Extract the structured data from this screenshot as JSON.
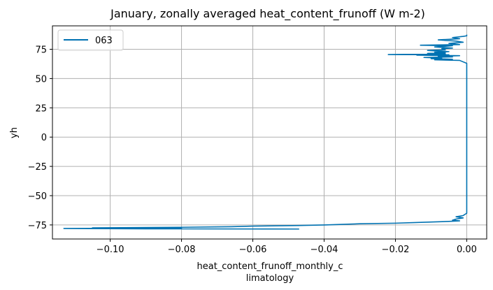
{
  "chart_data": {
    "type": "line",
    "title": "January, zonally averaged heat_content_frunoff (W m-2)",
    "xlabel_lines": [
      "heat_content_frunoff_monthly_c",
      "limatology"
    ],
    "ylabel": "yh",
    "xlim": [
      -0.1162,
      0.0056
    ],
    "ylim": [
      -87,
      95
    ],
    "xticks": [
      -0.1,
      -0.08,
      -0.06,
      -0.04,
      -0.02,
      0.0
    ],
    "xtick_labels": [
      "−0.10",
      "−0.08",
      "−0.06",
      "−0.04",
      "−0.02",
      "0.00"
    ],
    "yticks": [
      -75,
      -50,
      -25,
      0,
      25,
      50,
      75
    ],
    "ytick_labels": [
      "−75",
      "−50",
      "−25",
      "0",
      "25",
      "50",
      "75"
    ],
    "grid": true,
    "legend_position": "top-left",
    "series": [
      {
        "name": "063",
        "color": "#0072b2",
        "points": [
          [
            0.0,
            87.5
          ],
          [
            0.0,
            86.5
          ],
          [
            -0.001,
            86.0
          ],
          [
            -0.004,
            85.0
          ],
          [
            -0.002,
            84.0
          ],
          [
            -0.008,
            83.0
          ],
          [
            -0.003,
            82.0
          ],
          [
            -0.001,
            81.0
          ],
          [
            -0.005,
            80.0
          ],
          [
            -0.002,
            79.0
          ],
          [
            -0.013,
            78.5
          ],
          [
            -0.004,
            78.0
          ],
          [
            -0.009,
            77.0
          ],
          [
            -0.004,
            76.0
          ],
          [
            -0.007,
            75.5
          ],
          [
            -0.006,
            74.5
          ],
          [
            -0.011,
            74.0
          ],
          [
            -0.005,
            73.0
          ],
          [
            -0.009,
            72.5
          ],
          [
            -0.006,
            72.0
          ],
          [
            -0.011,
            71.5
          ],
          [
            -0.006,
            71.0
          ],
          [
            -0.022,
            70.5
          ],
          [
            -0.005,
            70.3
          ],
          [
            -0.014,
            70.0
          ],
          [
            -0.002,
            69.5
          ],
          [
            -0.008,
            69.0
          ],
          [
            -0.004,
            68.5
          ],
          [
            -0.012,
            68.0
          ],
          [
            -0.007,
            67.5
          ],
          [
            -0.01,
            67.0
          ],
          [
            -0.004,
            66.5
          ],
          [
            -0.009,
            66.0
          ],
          [
            -0.002,
            65.5
          ],
          [
            0.0,
            63.0
          ],
          [
            0.0,
            60.0
          ],
          [
            0.0,
            30.0
          ],
          [
            0.0,
            0.0
          ],
          [
            0.0,
            -30.0
          ],
          [
            0.0,
            -60.0
          ],
          [
            0.0,
            -65.0
          ],
          [
            -0.001,
            -67.0
          ],
          [
            -0.003,
            -68.0
          ],
          [
            -0.001,
            -69.0
          ],
          [
            -0.003,
            -70.0
          ],
          [
            -0.004,
            -71.0
          ],
          [
            -0.002,
            -71.5
          ],
          [
            -0.005,
            -72.0
          ],
          [
            -0.015,
            -73.0
          ],
          [
            -0.02,
            -73.5
          ],
          [
            -0.03,
            -74.0
          ],
          [
            -0.04,
            -75.0
          ],
          [
            -0.047,
            -75.5
          ],
          [
            -0.06,
            -76.0
          ],
          [
            -0.066,
            -76.5
          ],
          [
            -0.08,
            -77.0
          ],
          [
            -0.105,
            -77.5
          ],
          [
            -0.08,
            -77.8
          ],
          [
            -0.113,
            -78.0
          ],
          [
            -0.09,
            -78.3
          ],
          [
            -0.047,
            -78.5
          ]
        ]
      }
    ]
  }
}
